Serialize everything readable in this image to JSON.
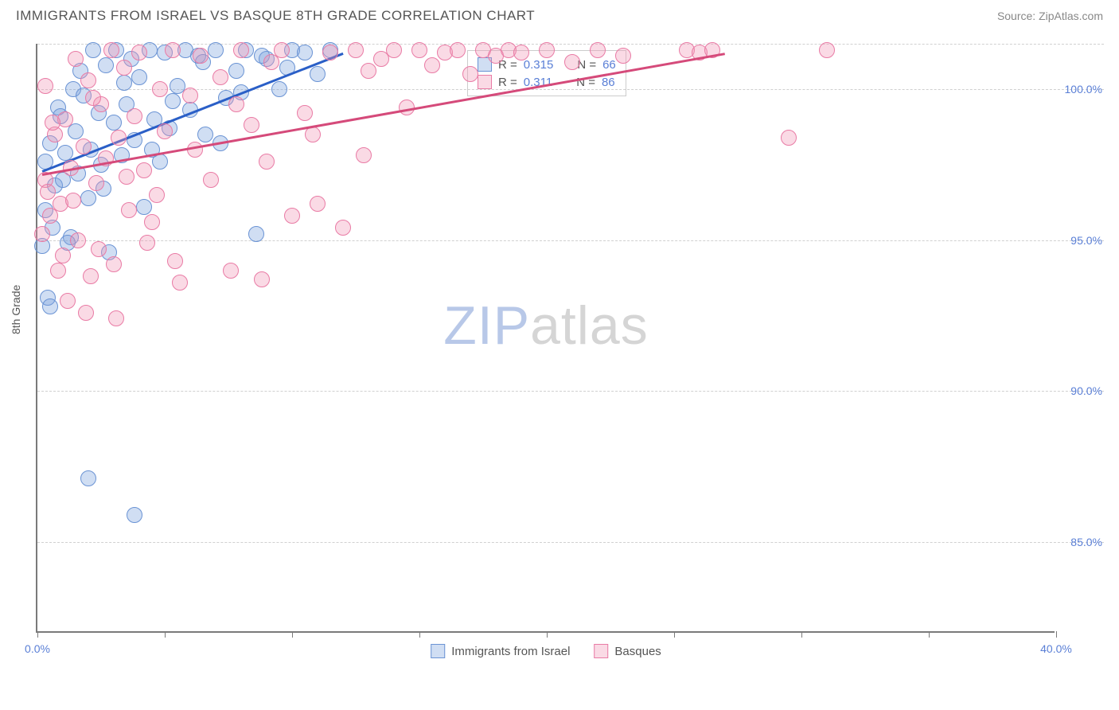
{
  "header": {
    "title": "IMMIGRANTS FROM ISRAEL VS BASQUE 8TH GRADE CORRELATION CHART",
    "source_prefix": "Source: ",
    "source": "ZipAtlas.com"
  },
  "chart": {
    "type": "scatter",
    "y_axis_title": "8th Grade",
    "xlim": [
      0,
      40
    ],
    "ylim": [
      82,
      101.5
    ],
    "x_ticks": [
      0,
      5,
      10,
      15,
      20,
      25,
      30,
      35,
      40
    ],
    "x_tick_labels": {
      "0": "0.0%",
      "40": "40.0%"
    },
    "y_gridlines": [
      85,
      90,
      95,
      100,
      101.5
    ],
    "y_tick_labels": {
      "85": "85.0%",
      "90": "90.0%",
      "95": "95.0%",
      "100": "100.0%"
    },
    "grid_color": "#d0d0d0",
    "axis_color": "#7a7a7a",
    "tick_label_color": "#5a7fd6",
    "watermark_zip": "ZIP",
    "watermark_atlas": "atlas",
    "point_radius": 10,
    "point_border_width": 1.5,
    "series": [
      {
        "name": "Immigrants from Israel",
        "fill": "rgba(120,160,220,0.35)",
        "stroke": "#6a93d4",
        "trend_color": "#2a5fc7",
        "trend": {
          "x1": 0.2,
          "y1": 97.3,
          "x2": 12.0,
          "y2": 101.2
        },
        "r_value": "0.315",
        "n_value": "66",
        "points": [
          [
            0.3,
            97.6
          ],
          [
            0.5,
            98.2
          ],
          [
            0.7,
            96.8
          ],
          [
            0.8,
            99.4
          ],
          [
            1.0,
            97.0
          ],
          [
            1.1,
            97.9
          ],
          [
            1.3,
            95.1
          ],
          [
            1.4,
            100.0
          ],
          [
            1.5,
            98.6
          ],
          [
            1.6,
            97.2
          ],
          [
            1.8,
            99.8
          ],
          [
            2.0,
            96.4
          ],
          [
            2.1,
            98.0
          ],
          [
            2.2,
            101.3
          ],
          [
            2.4,
            99.2
          ],
          [
            2.5,
            97.5
          ],
          [
            2.7,
            100.8
          ],
          [
            2.8,
            94.6
          ],
          [
            3.0,
            98.9
          ],
          [
            3.1,
            101.3
          ],
          [
            3.3,
            97.8
          ],
          [
            3.5,
            99.5
          ],
          [
            3.7,
            101.0
          ],
          [
            3.8,
            98.3
          ],
          [
            4.0,
            100.4
          ],
          [
            4.2,
            96.1
          ],
          [
            4.4,
            101.3
          ],
          [
            4.6,
            99.0
          ],
          [
            4.8,
            97.6
          ],
          [
            5.0,
            101.2
          ],
          [
            5.2,
            98.7
          ],
          [
            5.5,
            100.1
          ],
          [
            5.8,
            101.3
          ],
          [
            6.0,
            99.3
          ],
          [
            6.3,
            101.1
          ],
          [
            6.6,
            98.5
          ],
          [
            7.0,
            101.3
          ],
          [
            7.4,
            99.7
          ],
          [
            7.8,
            100.6
          ],
          [
            8.2,
            101.3
          ],
          [
            8.6,
            95.2
          ],
          [
            9.0,
            101.0
          ],
          [
            9.5,
            100.0
          ],
          [
            10.0,
            101.3
          ],
          [
            10.5,
            101.2
          ],
          [
            11.0,
            100.5
          ],
          [
            11.5,
            101.3
          ],
          [
            0.4,
            93.1
          ],
          [
            0.6,
            95.4
          ],
          [
            1.2,
            94.9
          ],
          [
            2.0,
            87.1
          ],
          [
            3.8,
            85.9
          ],
          [
            0.2,
            94.8
          ],
          [
            0.9,
            99.1
          ],
          [
            1.7,
            100.6
          ],
          [
            2.6,
            96.7
          ],
          [
            3.4,
            100.2
          ],
          [
            4.5,
            98.0
          ],
          [
            5.3,
            99.6
          ],
          [
            6.5,
            100.9
          ],
          [
            7.2,
            98.2
          ],
          [
            8.0,
            99.9
          ],
          [
            8.8,
            101.1
          ],
          [
            9.8,
            100.7
          ],
          [
            0.5,
            92.8
          ],
          [
            0.3,
            96.0
          ]
        ]
      },
      {
        "name": "Basques",
        "fill": "rgba(240,150,180,0.35)",
        "stroke": "#e97ba5",
        "trend_color": "#d54a7a",
        "trend": {
          "x1": 0.2,
          "y1": 97.2,
          "x2": 27.0,
          "y2": 101.2
        },
        "r_value": "0.311",
        "n_value": "86",
        "points": [
          [
            0.3,
            97.0
          ],
          [
            0.5,
            95.8
          ],
          [
            0.7,
            98.5
          ],
          [
            0.9,
            96.2
          ],
          [
            1.0,
            94.5
          ],
          [
            1.1,
            99.0
          ],
          [
            1.3,
            97.4
          ],
          [
            1.5,
            101.0
          ],
          [
            1.6,
            95.0
          ],
          [
            1.8,
            98.1
          ],
          [
            2.0,
            100.3
          ],
          [
            2.1,
            93.8
          ],
          [
            2.3,
            96.9
          ],
          [
            2.5,
            99.5
          ],
          [
            2.7,
            97.7
          ],
          [
            2.9,
            101.3
          ],
          [
            3.0,
            94.2
          ],
          [
            3.2,
            98.4
          ],
          [
            3.4,
            100.7
          ],
          [
            3.6,
            96.0
          ],
          [
            3.8,
            99.1
          ],
          [
            4.0,
            101.2
          ],
          [
            4.2,
            97.3
          ],
          [
            4.5,
            95.6
          ],
          [
            4.8,
            100.0
          ],
          [
            5.0,
            98.6
          ],
          [
            5.3,
            101.3
          ],
          [
            5.6,
            93.6
          ],
          [
            6.0,
            99.8
          ],
          [
            6.4,
            101.1
          ],
          [
            6.8,
            97.0
          ],
          [
            7.2,
            100.4
          ],
          [
            7.6,
            94.0
          ],
          [
            8.0,
            101.3
          ],
          [
            8.4,
            98.8
          ],
          [
            8.8,
            93.7
          ],
          [
            9.2,
            100.9
          ],
          [
            9.6,
            101.3
          ],
          [
            10.0,
            95.8
          ],
          [
            10.5,
            99.2
          ],
          [
            11.0,
            96.2
          ],
          [
            11.5,
            101.2
          ],
          [
            12.0,
            95.4
          ],
          [
            12.5,
            101.3
          ],
          [
            13.0,
            100.6
          ],
          [
            13.5,
            101.0
          ],
          [
            14.0,
            101.3
          ],
          [
            14.5,
            99.4
          ],
          [
            15.0,
            101.3
          ],
          [
            15.5,
            100.8
          ],
          [
            16.0,
            101.2
          ],
          [
            16.5,
            101.3
          ],
          [
            17.0,
            100.5
          ],
          [
            17.5,
            101.3
          ],
          [
            18.0,
            101.1
          ],
          [
            18.5,
            101.3
          ],
          [
            19.0,
            101.2
          ],
          [
            20.0,
            101.3
          ],
          [
            21.0,
            100.9
          ],
          [
            22.0,
            101.3
          ],
          [
            23.0,
            101.1
          ],
          [
            25.5,
            101.3
          ],
          [
            26.0,
            101.2
          ],
          [
            26.5,
            101.3
          ],
          [
            29.5,
            98.4
          ],
          [
            31.0,
            101.3
          ],
          [
            0.2,
            95.2
          ],
          [
            0.4,
            96.6
          ],
          [
            0.8,
            94.0
          ],
          [
            1.2,
            93.0
          ],
          [
            1.9,
            92.6
          ],
          [
            2.4,
            94.7
          ],
          [
            3.1,
            92.4
          ],
          [
            4.3,
            94.9
          ],
          [
            5.4,
            94.3
          ],
          [
            0.6,
            98.9
          ],
          [
            1.4,
            96.3
          ],
          [
            2.2,
            99.7
          ],
          [
            3.5,
            97.1
          ],
          [
            4.7,
            96.5
          ],
          [
            6.2,
            98.0
          ],
          [
            7.8,
            99.5
          ],
          [
            9.0,
            97.6
          ],
          [
            10.8,
            98.5
          ],
          [
            12.8,
            97.8
          ],
          [
            0.3,
            100.1
          ]
        ]
      }
    ],
    "stats_labels": {
      "R": "R =",
      "N": "N ="
    },
    "legend": [
      {
        "label": "Immigrants from Israel",
        "fill": "rgba(120,160,220,0.35)",
        "stroke": "#6a93d4"
      },
      {
        "label": "Basques",
        "fill": "rgba(240,150,180,0.35)",
        "stroke": "#e97ba5"
      }
    ]
  }
}
